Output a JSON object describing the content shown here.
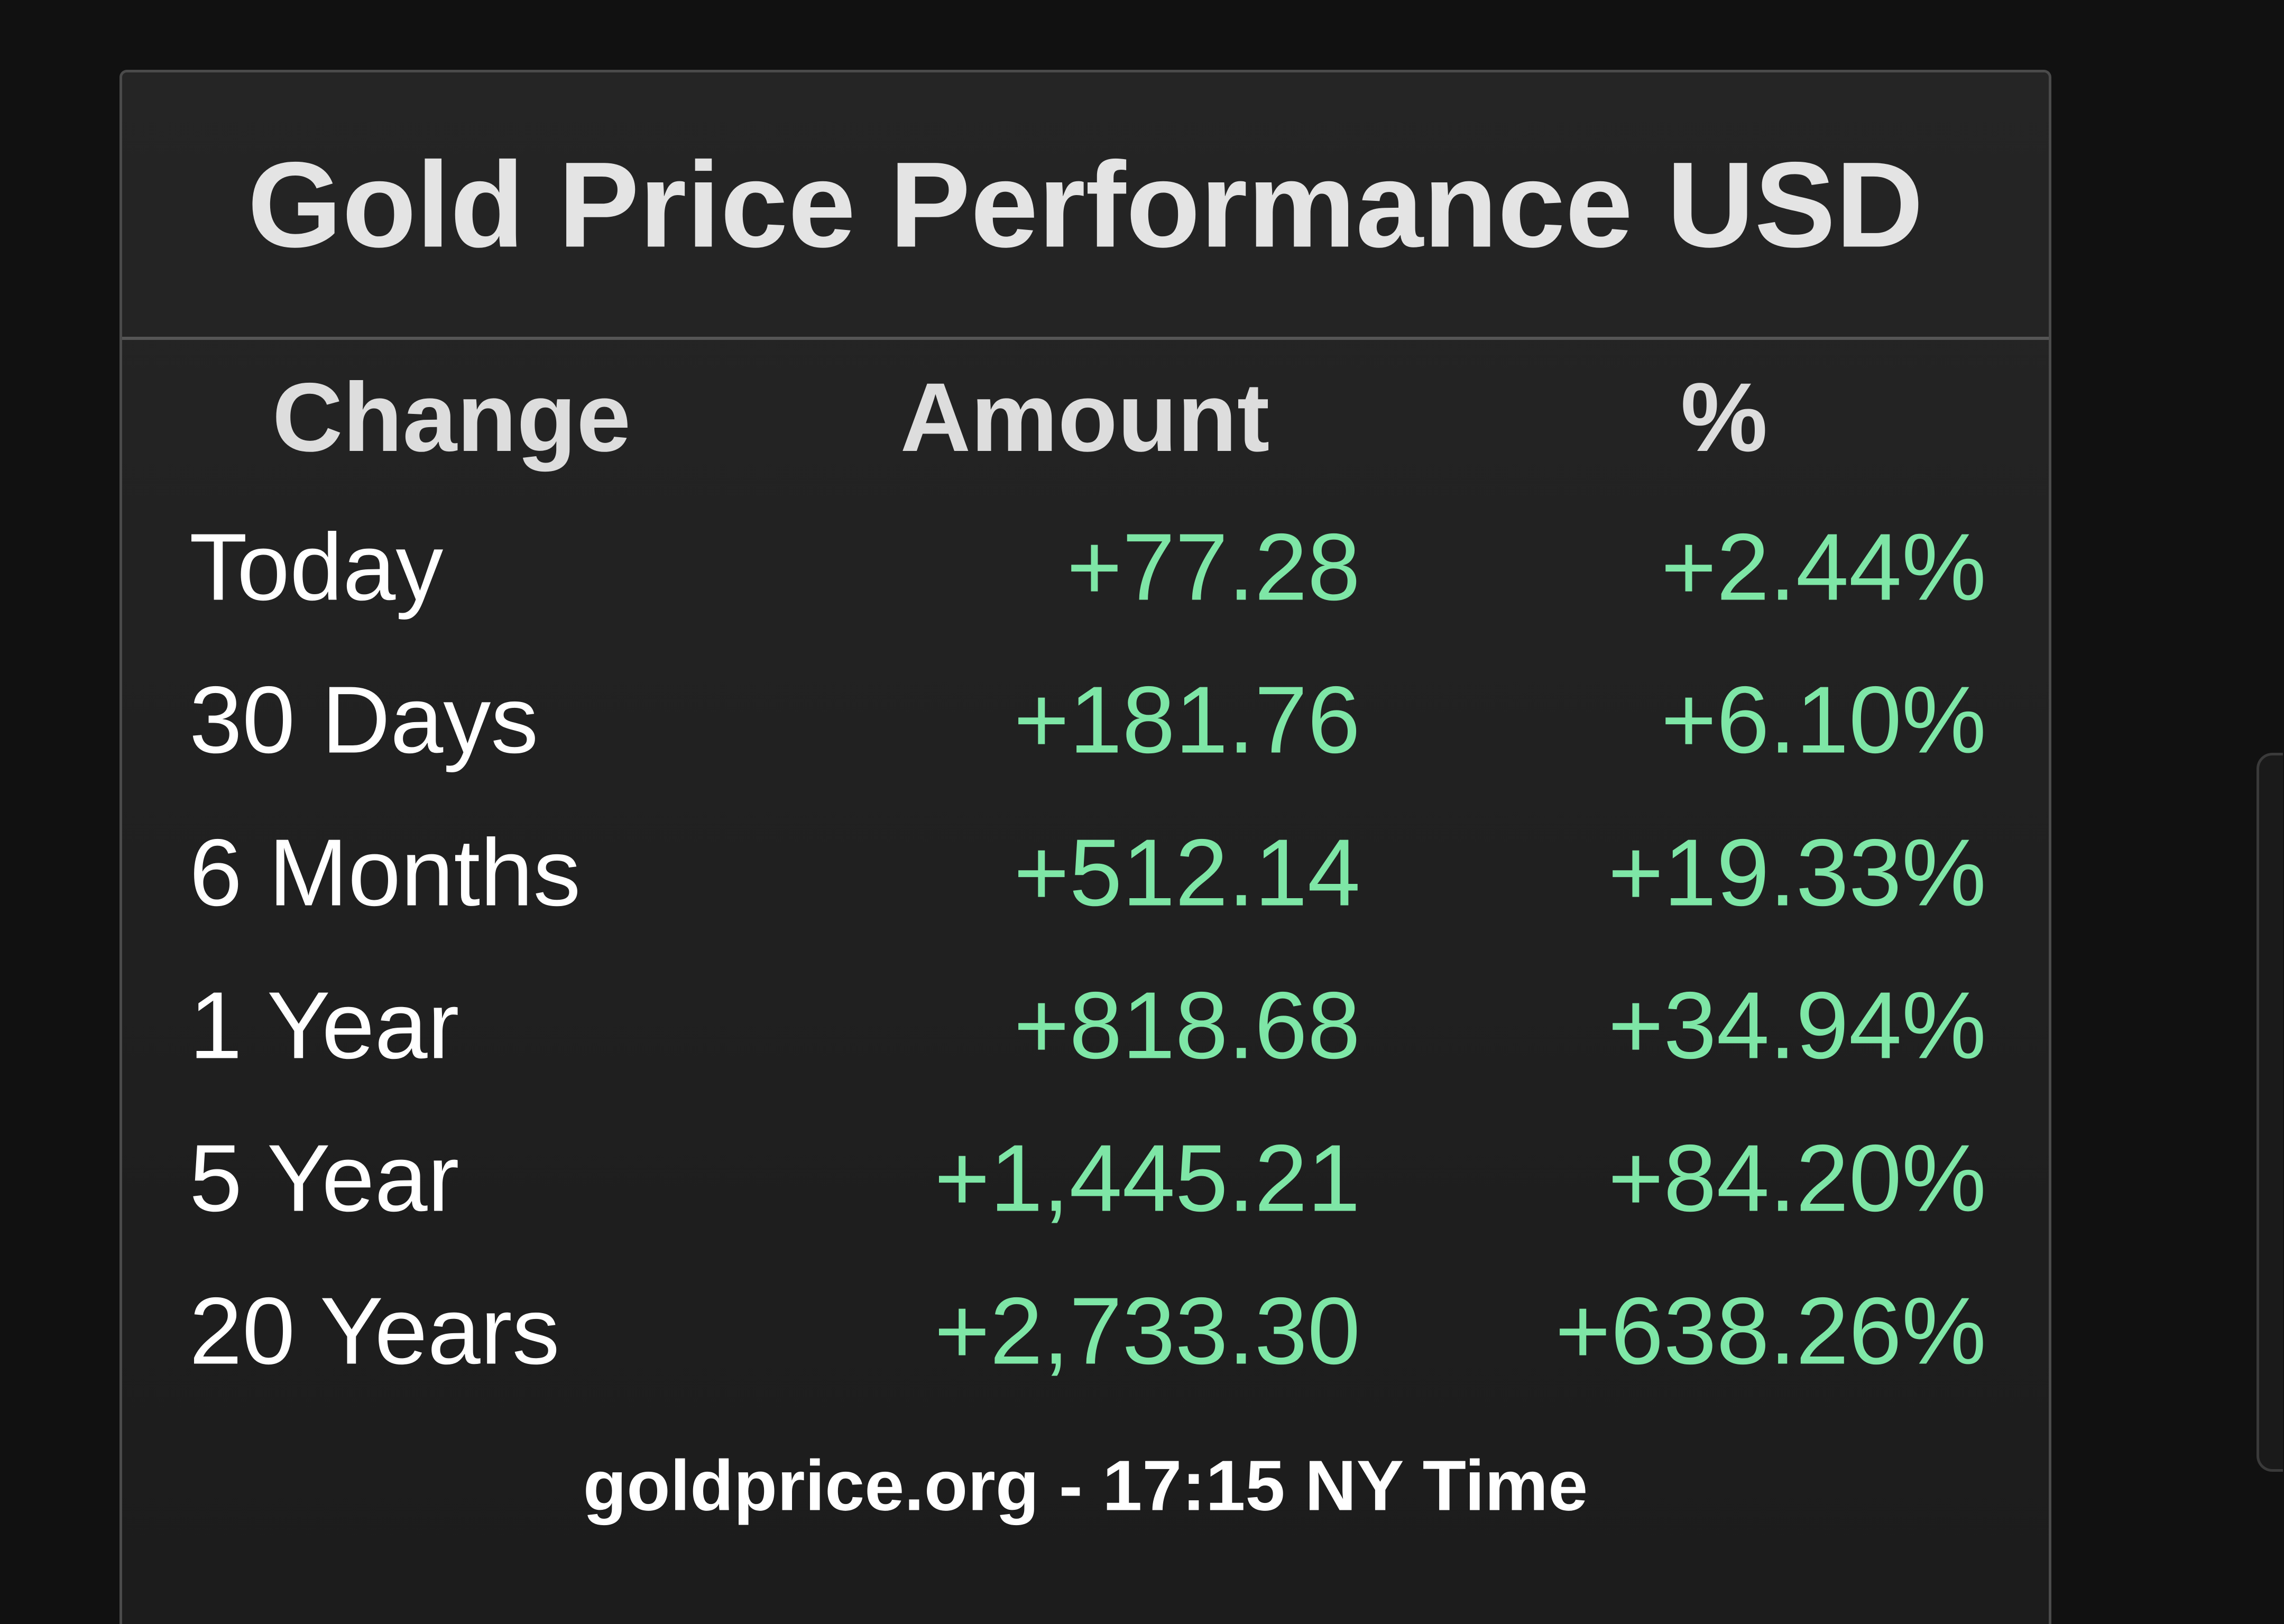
{
  "header": {
    "title": "Gold Price Performance USD"
  },
  "table": {
    "columns": [
      "Change",
      "Amount",
      "%"
    ],
    "rows": [
      [
        "Today",
        "+77.28",
        "+2.44%"
      ],
      [
        "30 Days",
        "+181.76",
        "+6.10%"
      ],
      [
        "6 Months",
        "+512.14",
        "+19.33%"
      ],
      [
        "1 Year",
        "+818.68",
        "+34.94%"
      ],
      [
        "5 Year",
        "+1,445.21",
        "+84.20%"
      ],
      [
        "20 Years",
        "+2,733.30",
        "+638.26%"
      ]
    ]
  },
  "footer": {
    "text": "goldprice.org - 17:15 NY Time"
  }
}
